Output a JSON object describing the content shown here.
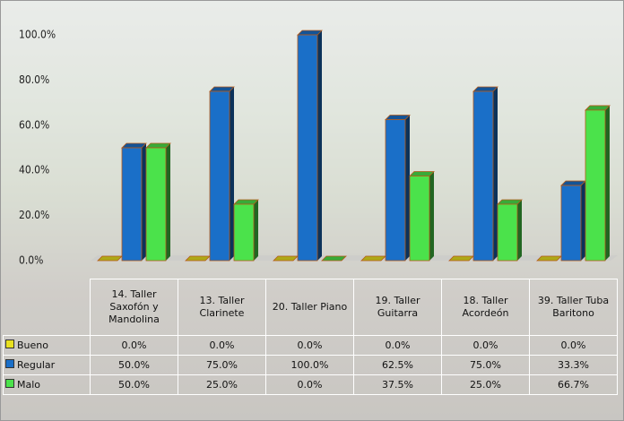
{
  "chart_data": {
    "type": "bar",
    "categories": [
      "14. Taller Saxofón y Mandolina",
      "13. Taller Clarinete",
      "20. Taller Piano",
      "19. Taller Guitarra",
      "18. Taller Acordeón",
      "39. Taller Tuba Baritono"
    ],
    "series": [
      {
        "name": "Bueno",
        "color": "#e8e020",
        "values": [
          0,
          0,
          0,
          0,
          0,
          0
        ],
        "value_labels": [
          "0.0%",
          "0.0%",
          "0.0%",
          "0.0%",
          "0.0%",
          "0.0%"
        ]
      },
      {
        "name": "Regular",
        "color": "#1a6fc8",
        "values": [
          50,
          75,
          100,
          62.5,
          75,
          33.3
        ],
        "value_labels": [
          "50.0%",
          "75.0%",
          "100.0%",
          "62.5%",
          "75.0%",
          "33.3%"
        ]
      },
      {
        "name": "Malo",
        "color": "#4be24b",
        "values": [
          50,
          25,
          0,
          37.5,
          25,
          66.7
        ],
        "value_labels": [
          "50.0%",
          "25.0%",
          "0.0%",
          "37.5%",
          "25.0%",
          "66.7%"
        ]
      }
    ],
    "ylim": [
      0,
      100
    ],
    "yticks": [
      {
        "value": 0,
        "label": "0.0%"
      },
      {
        "value": 20,
        "label": "20.0%"
      },
      {
        "value": 40,
        "label": "40.0%"
      },
      {
        "value": 60,
        "label": "60.0%"
      },
      {
        "value": 80,
        "label": "80.0%"
      },
      {
        "value": 100,
        "label": "100.0%"
      }
    ],
    "grid": false
  }
}
